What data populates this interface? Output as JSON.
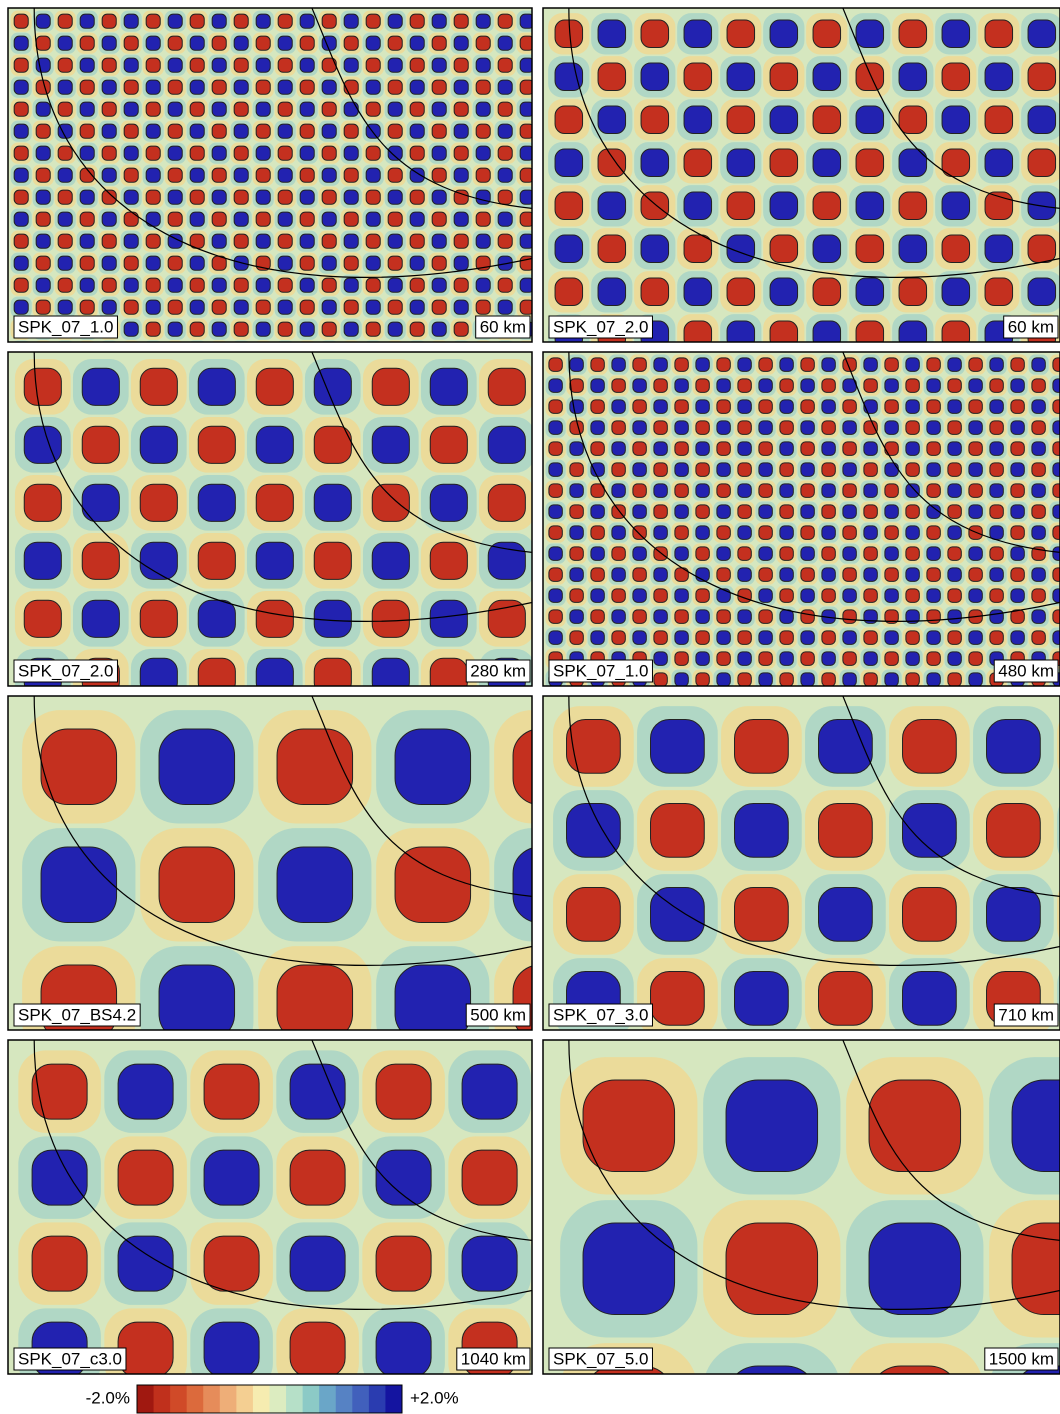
{
  "panels": [
    {
      "model": "SPK_07_1.0",
      "depth": "60 km"
    },
    {
      "model": "SPK_07_2.0",
      "depth": "60 km"
    },
    {
      "model": "SPK_07_2.0",
      "depth": "280 km"
    },
    {
      "model": "SPK_07_1.0",
      "depth": "480 km"
    },
    {
      "model": "SPK_07_BS4.2",
      "depth": "500 km"
    },
    {
      "model": "SPK_07_3.0",
      "depth": "710 km"
    },
    {
      "model": "SPK_07_c3.0",
      "depth": "1040 km"
    },
    {
      "model": "SPK_07_5.0",
      "depth": "1500 km"
    }
  ],
  "colorbar": {
    "min_label": "-2.0%",
    "max_label": "+2.0%"
  }
}
